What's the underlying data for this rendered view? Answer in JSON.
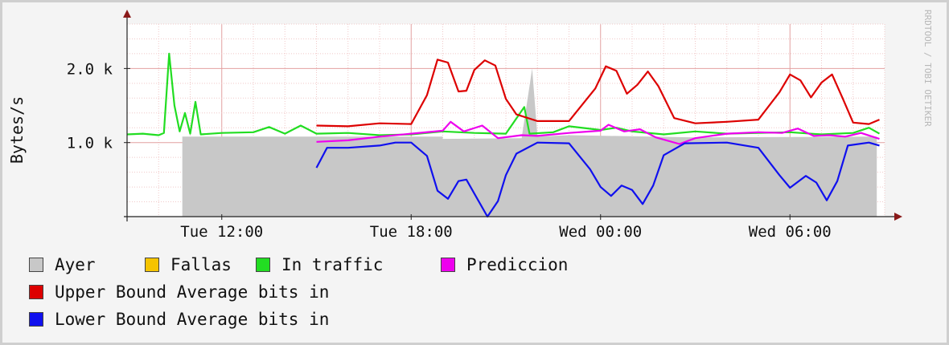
{
  "chart_data": {
    "type": "area",
    "ylabel": "Bytes/s",
    "watermark": "RRDTOOL / TOBI OETIKER",
    "y_ticks": [
      {
        "value": 1000,
        "label": "1.0 k"
      },
      {
        "value": 2000,
        "label": "2.0 k"
      }
    ],
    "ylim": [
      0,
      2600
    ],
    "x_range": [
      "Tue 09:00",
      "Wed 09:00"
    ],
    "x_ticks": [
      {
        "time": "Tue 12:00",
        "label": "Tue 12:00"
      },
      {
        "time": "Tue 18:00",
        "label": "Tue 18:00"
      },
      {
        "time": "Wed 00:00",
        "label": "Wed 00:00"
      },
      {
        "time": "Wed 06:00",
        "label": "Wed 06:00"
      }
    ],
    "grid": true,
    "legend_position": "bottom",
    "series": [
      {
        "name": "Ayer",
        "color": "#c8c8c8",
        "kind": "area",
        "points": [
          [
            "Tue 10:45",
            0
          ],
          [
            "Tue 10:45",
            1080
          ],
          [
            "Tue 19:00",
            1080
          ],
          [
            "Tue 19:00",
            1050
          ],
          [
            "Tue 21:30",
            1060
          ],
          [
            "Tue 21:50",
            2000
          ],
          [
            "Tue 22:00",
            1080
          ],
          [
            "Tue 23:00",
            1100
          ],
          [
            "Wed 03:00",
            1070
          ],
          [
            "Wed 08:45",
            1080
          ],
          [
            "Wed 08:45",
            0
          ]
        ]
      },
      {
        "name": "Fallas",
        "color": "#f5c400",
        "kind": "line",
        "points": []
      },
      {
        "name": "In traffic",
        "color": "#22dd22",
        "kind": "line",
        "points": [
          [
            "Tue 09:00",
            1110
          ],
          [
            "Tue 09:30",
            1120
          ],
          [
            "Tue 10:00",
            1100
          ],
          [
            "Tue 10:10",
            1130
          ],
          [
            "Tue 10:20",
            2200
          ],
          [
            "Tue 10:30",
            1500
          ],
          [
            "Tue 10:40",
            1150
          ],
          [
            "Tue 10:50",
            1400
          ],
          [
            "Tue 11:00",
            1120
          ],
          [
            "Tue 11:10",
            1550
          ],
          [
            "Tue 11:20",
            1110
          ],
          [
            "Tue 12:00",
            1130
          ],
          [
            "Tue 13:00",
            1140
          ],
          [
            "Tue 13:30",
            1210
          ],
          [
            "Tue 14:00",
            1120
          ],
          [
            "Tue 14:30",
            1230
          ],
          [
            "Tue 15:00",
            1120
          ],
          [
            "Tue 16:00",
            1130
          ],
          [
            "Tue 17:00",
            1100
          ],
          [
            "Tue 18:00",
            1110
          ],
          [
            "Tue 19:00",
            1150
          ],
          [
            "Tue 20:00",
            1130
          ],
          [
            "Tue 21:00",
            1120
          ],
          [
            "Tue 21:35",
            1480
          ],
          [
            "Tue 21:45",
            1120
          ],
          [
            "Tue 22:30",
            1140
          ],
          [
            "Tue 23:00",
            1220
          ],
          [
            "Wed 00:00",
            1170
          ],
          [
            "Wed 00:30",
            1200
          ],
          [
            "Wed 01:00",
            1150
          ],
          [
            "Wed 02:00",
            1110
          ],
          [
            "Wed 03:00",
            1150
          ],
          [
            "Wed 04:00",
            1120
          ],
          [
            "Wed 05:00",
            1130
          ],
          [
            "Wed 06:00",
            1140
          ],
          [
            "Wed 07:00",
            1110
          ],
          [
            "Wed 08:00",
            1130
          ],
          [
            "Wed 08:30",
            1200
          ],
          [
            "Wed 08:50",
            1120
          ]
        ]
      },
      {
        "name": "Prediccion",
        "color": "#ee00ee",
        "kind": "line",
        "points": [
          [
            "Tue 15:00",
            1010
          ],
          [
            "Tue 16:00",
            1030
          ],
          [
            "Tue 17:00",
            1080
          ],
          [
            "Tue 18:00",
            1120
          ],
          [
            "Tue 19:00",
            1160
          ],
          [
            "Tue 19:15",
            1280
          ],
          [
            "Tue 19:40",
            1150
          ],
          [
            "Tue 20:15",
            1230
          ],
          [
            "Tue 20:45",
            1060
          ],
          [
            "Tue 21:30",
            1100
          ],
          [
            "Tue 22:00",
            1090
          ],
          [
            "Tue 23:00",
            1130
          ],
          [
            "Wed 00:00",
            1160
          ],
          [
            "Wed 00:15",
            1240
          ],
          [
            "Wed 00:45",
            1150
          ],
          [
            "Wed 01:15",
            1180
          ],
          [
            "Wed 01:45",
            1070
          ],
          [
            "Wed 02:30",
            980
          ],
          [
            "Wed 03:00",
            1060
          ],
          [
            "Wed 04:00",
            1120
          ],
          [
            "Wed 05:00",
            1140
          ],
          [
            "Wed 05:45",
            1130
          ],
          [
            "Wed 06:15",
            1190
          ],
          [
            "Wed 06:45",
            1090
          ],
          [
            "Wed 07:15",
            1100
          ],
          [
            "Wed 07:45",
            1080
          ],
          [
            "Wed 08:15",
            1130
          ],
          [
            "Wed 08:50",
            1050
          ]
        ]
      },
      {
        "name": "Upper Bound Average bits in",
        "color": "#dd0000",
        "kind": "line",
        "points": [
          [
            "Tue 15:00",
            1230
          ],
          [
            "Tue 16:00",
            1220
          ],
          [
            "Tue 17:00",
            1260
          ],
          [
            "Tue 18:00",
            1250
          ],
          [
            "Tue 18:30",
            1640
          ],
          [
            "Tue 18:50",
            2120
          ],
          [
            "Tue 19:10",
            2080
          ],
          [
            "Tue 19:30",
            1690
          ],
          [
            "Tue 19:45",
            1700
          ],
          [
            "Tue 20:00",
            1980
          ],
          [
            "Tue 20:20",
            2110
          ],
          [
            "Tue 20:40",
            2040
          ],
          [
            "Tue 21:00",
            1590
          ],
          [
            "Tue 21:20",
            1380
          ],
          [
            "Tue 22:00",
            1290
          ],
          [
            "Tue 23:00",
            1290
          ],
          [
            "Tue 23:50",
            1730
          ],
          [
            "Wed 00:10",
            2030
          ],
          [
            "Wed 00:30",
            1970
          ],
          [
            "Wed 00:50",
            1660
          ],
          [
            "Wed 01:10",
            1780
          ],
          [
            "Wed 01:30",
            1960
          ],
          [
            "Wed 01:50",
            1760
          ],
          [
            "Wed 02:20",
            1330
          ],
          [
            "Wed 03:00",
            1260
          ],
          [
            "Wed 04:00",
            1280
          ],
          [
            "Wed 05:00",
            1310
          ],
          [
            "Wed 05:40",
            1680
          ],
          [
            "Wed 06:00",
            1920
          ],
          [
            "Wed 06:20",
            1840
          ],
          [
            "Wed 06:40",
            1610
          ],
          [
            "Wed 07:00",
            1810
          ],
          [
            "Wed 07:20",
            1920
          ],
          [
            "Wed 07:40",
            1600
          ],
          [
            "Wed 08:00",
            1270
          ],
          [
            "Wed 08:30",
            1250
          ],
          [
            "Wed 08:50",
            1310
          ]
        ]
      },
      {
        "name": "Lower Bound Average bits in",
        "color": "#1010ee",
        "kind": "line",
        "points": [
          [
            "Tue 15:00",
            660
          ],
          [
            "Tue 15:20",
            930
          ],
          [
            "Tue 16:00",
            930
          ],
          [
            "Tue 17:00",
            960
          ],
          [
            "Tue 17:30",
            1000
          ],
          [
            "Tue 18:00",
            1000
          ],
          [
            "Tue 18:30",
            820
          ],
          [
            "Tue 18:50",
            350
          ],
          [
            "Tue 19:10",
            240
          ],
          [
            "Tue 19:30",
            480
          ],
          [
            "Tue 19:45",
            500
          ],
          [
            "Tue 20:05",
            250
          ],
          [
            "Tue 20:25",
            0
          ],
          [
            "Tue 20:45",
            210
          ],
          [
            "Tue 21:00",
            560
          ],
          [
            "Tue 21:20",
            850
          ],
          [
            "Tue 22:00",
            1000
          ],
          [
            "Tue 23:00",
            990
          ],
          [
            "Tue 23:40",
            640
          ],
          [
            "Wed 00:00",
            400
          ],
          [
            "Wed 00:20",
            280
          ],
          [
            "Wed 00:40",
            420
          ],
          [
            "Wed 01:00",
            360
          ],
          [
            "Wed 01:20",
            170
          ],
          [
            "Wed 01:40",
            420
          ],
          [
            "Wed 02:00",
            830
          ],
          [
            "Wed 02:40",
            990
          ],
          [
            "Wed 04:00",
            1000
          ],
          [
            "Wed 05:00",
            930
          ],
          [
            "Wed 05:40",
            560
          ],
          [
            "Wed 06:00",
            390
          ],
          [
            "Wed 06:30",
            550
          ],
          [
            "Wed 06:50",
            460
          ],
          [
            "Wed 07:10",
            220
          ],
          [
            "Wed 07:30",
            480
          ],
          [
            "Wed 07:50",
            960
          ],
          [
            "Wed 08:30",
            1000
          ],
          [
            "Wed 08:50",
            960
          ]
        ]
      }
    ]
  }
}
